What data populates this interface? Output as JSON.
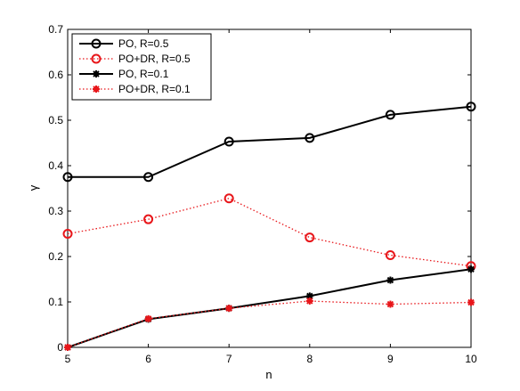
{
  "chart_data": {
    "type": "line",
    "title": "",
    "xlabel": "n",
    "ylabel": "γ",
    "xlim": [
      5,
      10
    ],
    "ylim": [
      0,
      0.7
    ],
    "x": [
      5,
      6,
      7,
      8,
      9,
      10
    ],
    "xticks": [
      "5",
      "6",
      "7",
      "8",
      "9",
      "10"
    ],
    "yticks": [
      "0",
      "0.1",
      "0.2",
      "0.3",
      "0.4",
      "0.5",
      "0.6",
      "0.7"
    ],
    "grid": false,
    "legend_position": "top-left",
    "series": [
      {
        "name": "PO, R=0.5",
        "values": [
          0.375,
          0.375,
          0.453,
          0.461,
          0.512,
          0.53
        ],
        "color": "#000000",
        "line_style": "solid",
        "marker": "circle"
      },
      {
        "name": "PO+DR, R=0.5",
        "values": [
          0.25,
          0.282,
          0.328,
          0.242,
          0.203,
          0.179
        ],
        "color": "#e8161a",
        "line_style": "dotted",
        "marker": "circle"
      },
      {
        "name": "PO, R=0.1",
        "values": [
          0.0,
          0.062,
          0.086,
          0.113,
          0.148,
          0.172
        ],
        "color": "#000000",
        "line_style": "solid",
        "marker": "asterisk"
      },
      {
        "name": "PO+DR, R=0.1",
        "values": [
          0.0,
          0.063,
          0.086,
          0.102,
          0.095,
          0.099
        ],
        "color": "#e8161a",
        "line_style": "dotted",
        "marker": "asterisk"
      }
    ]
  }
}
